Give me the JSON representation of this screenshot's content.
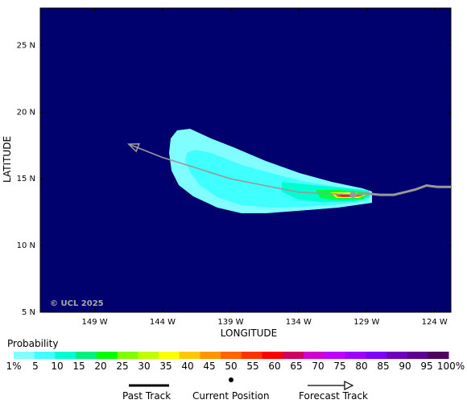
{
  "map": {
    "latitude_label": "LATITUDE",
    "longitude_label": "LONGITUDE",
    "lat_ticks": [
      {
        "value": 25,
        "label": "25 N"
      },
      {
        "value": 20,
        "label": "20 N"
      },
      {
        "value": 15,
        "label": "15 N"
      },
      {
        "value": 10,
        "label": "10 N"
      },
      {
        "value": 5,
        "label": "5 N"
      }
    ],
    "lon_ticks": [
      {
        "value": -149,
        "label": "149 W"
      },
      {
        "value": -144,
        "label": "144 W"
      },
      {
        "value": -139,
        "label": "139 W"
      },
      {
        "value": -134,
        "label": "134 W"
      },
      {
        "value": -129,
        "label": "129 W"
      },
      {
        "value": -124,
        "label": "124 W"
      }
    ],
    "lat_range": [
      5,
      27.8
    ],
    "lon_range": [
      -153,
      -122.8
    ],
    "ocean_color": "#00006e",
    "copyright": "© UCL 2025",
    "past_track": [
      [
        -122.8,
        14.4
      ],
      [
        -123.8,
        14.4
      ],
      [
        -124.6,
        14.5
      ],
      [
        -125.4,
        14.2
      ],
      [
        -126.2,
        14.0
      ],
      [
        -127.0,
        13.8
      ],
      [
        -128.0,
        13.8
      ],
      [
        -129.0,
        13.9
      ],
      [
        -130.0,
        13.8
      ]
    ],
    "current_position": [
      -130.0,
      13.8
    ],
    "forecast_track": [
      [
        -130.0,
        13.8
      ],
      [
        -132.0,
        13.9
      ],
      [
        -134.0,
        14.0
      ],
      [
        -136.5,
        14.5
      ],
      [
        -139.0,
        15.0
      ],
      [
        -141.5,
        15.8
      ],
      [
        -144.0,
        16.6
      ],
      [
        -146.5,
        17.6
      ]
    ]
  },
  "legend": {
    "title": "Probability",
    "colors": [
      "#80ffff",
      "#40ffff",
      "#00ffd0",
      "#00f080",
      "#00ff00",
      "#80ff00",
      "#c0ff00",
      "#ffff00",
      "#ffc800",
      "#ff9600",
      "#ff6400",
      "#ff3200",
      "#ff0000",
      "#d00060",
      "#d000d0",
      "#c000ff",
      "#a000ff",
      "#8000ff",
      "#7000c0",
      "#600090",
      "#500060"
    ],
    "labels": [
      "1%",
      "5",
      "10",
      "15",
      "20",
      "25",
      "30",
      "35",
      "40",
      "45",
      "50",
      "55",
      "60",
      "65",
      "70",
      "75",
      "80",
      "85",
      "90",
      "95",
      "100%"
    ]
  },
  "key": {
    "past_track_label": "Past Track",
    "current_position_label": "Current Position",
    "forecast_track_label": "Forecast Track"
  }
}
